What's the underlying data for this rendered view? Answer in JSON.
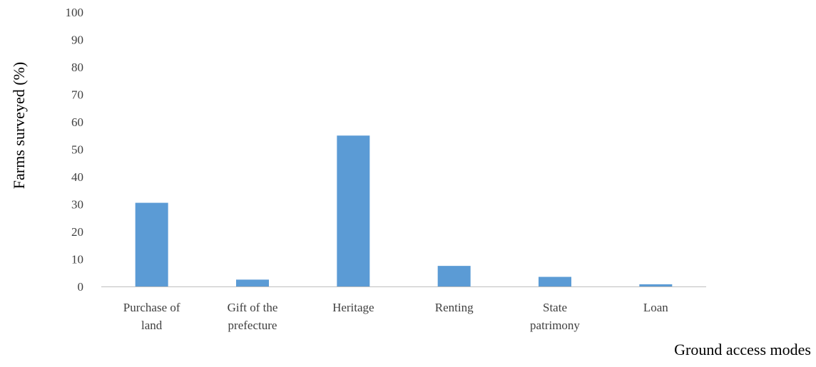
{
  "chart_data": {
    "type": "bar",
    "title": "",
    "xlabel": "Ground access modes",
    "ylabel": "Farms surveyed (%)",
    "categories": [
      [
        "Purchase of",
        "land"
      ],
      [
        "Gift of the",
        "prefecture"
      ],
      [
        "Heritage"
      ],
      [
        "Renting"
      ],
      [
        "State",
        "patrimony"
      ],
      [
        "Loan"
      ]
    ],
    "values": [
      30.5,
      2.5,
      55,
      7.5,
      3.5,
      0.8
    ],
    "ylim": [
      0,
      100
    ],
    "yticks": [
      0,
      10,
      20,
      30,
      40,
      50,
      60,
      70,
      80,
      90,
      100
    ],
    "grid": false,
    "legend": "none",
    "colors": {
      "bar": "#5b9bd5",
      "axis": "#bfbfbf"
    }
  }
}
